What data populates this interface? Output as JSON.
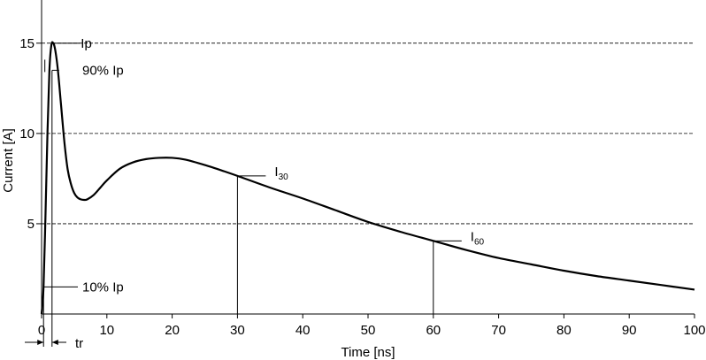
{
  "chart_data": {
    "type": "line",
    "title": "",
    "xlabel": "Time [ns]",
    "ylabel": "Current [A]",
    "xlim": [
      0,
      100
    ],
    "ylim": [
      0,
      17
    ],
    "x_ticks": [
      0,
      10,
      20,
      30,
      40,
      50,
      60,
      70,
      80,
      90,
      100
    ],
    "y_ticks": [
      5,
      10,
      15
    ],
    "grid": "horizontal dashed at 5, 10, 15",
    "series": [
      {
        "x": [
          0,
          0.3,
          0.6,
          0.9,
          1.2,
          1.5,
          1.8,
          2.1,
          2.5,
          3,
          3.5,
          4,
          4.5,
          5,
          5.5,
          6,
          6.5,
          7,
          8,
          9,
          10,
          12,
          14,
          16,
          18,
          20,
          22,
          25,
          28,
          30,
          35,
          40,
          45,
          50,
          55,
          60,
          65,
          70,
          75,
          80,
          85,
          90,
          95,
          100
        ],
        "y": [
          0,
          1.5,
          5.5,
          10,
          13.5,
          14.9,
          15,
          14.6,
          13.5,
          11.5,
          9.5,
          8,
          7.2,
          6.7,
          6.45,
          6.35,
          6.32,
          6.35,
          6.6,
          7,
          7.4,
          8.05,
          8.4,
          8.58,
          8.65,
          8.65,
          8.55,
          8.25,
          7.9,
          7.65,
          7,
          6.4,
          5.75,
          5.1,
          4.55,
          4.05,
          3.55,
          3.1,
          2.75,
          2.4,
          2.1,
          1.85,
          1.6,
          1.35
        ]
      }
    ],
    "annotations": {
      "ip": "Ip",
      "ip90": "90% Ip",
      "ip10": "10% Ip",
      "tr": "tr",
      "i30_main": "I",
      "i30_sub": "30",
      "i60_main": "I",
      "i60_sub": "60"
    },
    "markers": {
      "ip_value": 15,
      "ip90_value": 13.5,
      "ip10_value": 1.5,
      "i30_time": 30,
      "i30_value": 7.65,
      "i60_time": 60,
      "i60_value": 4.05
    }
  }
}
